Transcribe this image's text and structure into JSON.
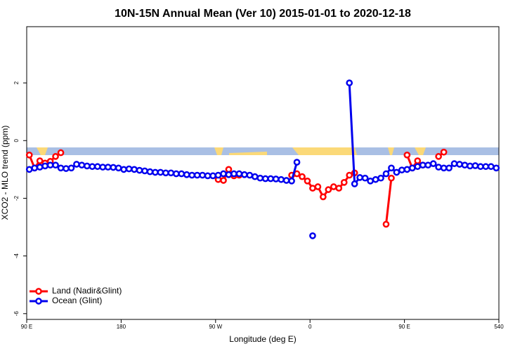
{
  "chart_data": {
    "type": "line",
    "title": "10N-15N Annual Mean (Ver 10)   2015-01-01 to 2020-12-18",
    "x_label": "Longitude (deg E)",
    "y_label": "XCO2 - MLO trend (ppm)",
    "xlim": [
      90,
      540
    ],
    "ylim": [
      -6.2,
      3.95
    ],
    "xticks": [
      {
        "value": 90,
        "label": "90 E"
      },
      180,
      {
        "value": 270,
        "label": "90 W"
      },
      {
        "value": 360,
        "label": "0"
      },
      {
        "value": 450,
        "label": "90 E"
      },
      540
    ],
    "yticks": [
      -6,
      -4,
      -2,
      0,
      2
    ],
    "legend": "bottom-left",
    "x": [
      92.5,
      97.5,
      102.5,
      107.5,
      112.5,
      117.5,
      122.5,
      127.5,
      132.5,
      137.5,
      142.5,
      147.5,
      152.5,
      157.5,
      162.5,
      167.5,
      172.5,
      177.5,
      182.5,
      187.5,
      192.5,
      197.5,
      202.5,
      207.5,
      212.5,
      217.5,
      222.5,
      227.5,
      232.5,
      237.5,
      242.5,
      247.5,
      252.5,
      257.5,
      262.5,
      267.5,
      272.5,
      277.5,
      282.5,
      287.5,
      292.5,
      297.5,
      302.5,
      307.5,
      312.5,
      317.5,
      322.5,
      327.5,
      332.5,
      337.5,
      342.5,
      347.5,
      352.5,
      357.5,
      362.5,
      367.5,
      372.5,
      377.5,
      382.5,
      387.5,
      392.5,
      397.5,
      402.5,
      407.5,
      412.5,
      417.5,
      422.5,
      427.5,
      432.5,
      437.5,
      442.5,
      447.5,
      452.5,
      457.5,
      462.5,
      467.5,
      472.5,
      477.5,
      482.5,
      487.5,
      492.5,
      497.5,
      502.5,
      507.5,
      512.5,
      517.5,
      522.5,
      527.5,
      532.5,
      537.5
    ],
    "series": [
      {
        "name": "Land (Nadir&Glint)",
        "color": "#ff0000",
        "values": [
          -0.5,
          -0.95,
          -0.7,
          -0.78,
          -0.72,
          -0.55,
          -0.42,
          null,
          null,
          null,
          null,
          null,
          null,
          null,
          null,
          null,
          null,
          null,
          null,
          null,
          null,
          null,
          null,
          null,
          null,
          null,
          null,
          null,
          null,
          null,
          null,
          null,
          null,
          null,
          null,
          null,
          -1.35,
          -1.38,
          -1.0,
          -1.22,
          -1.2,
          null,
          null,
          null,
          null,
          null,
          null,
          null,
          null,
          null,
          -1.2,
          -1.15,
          -1.25,
          -1.4,
          -1.65,
          -1.6,
          -1.95,
          -1.7,
          -1.6,
          -1.65,
          -1.45,
          -1.2,
          -1.12,
          null,
          null,
          null,
          null,
          null,
          -2.9,
          -1.3,
          null,
          null,
          -0.5,
          -0.95,
          -0.7,
          -0.85,
          null,
          null,
          -0.55,
          -0.4,
          null,
          null,
          null,
          null,
          null,
          null,
          null,
          null,
          null,
          null
        ]
      },
      {
        "name": "Ocean (Glint)",
        "color": "#0000ee",
        "values": [
          -1.0,
          -0.95,
          -0.92,
          -0.88,
          -0.85,
          -0.85,
          -0.95,
          -0.97,
          -0.95,
          -0.82,
          -0.85,
          -0.88,
          -0.9,
          -0.9,
          -0.92,
          -0.92,
          -0.93,
          -0.95,
          -1.0,
          -0.98,
          -1.0,
          -1.03,
          -1.05,
          -1.08,
          -1.1,
          -1.1,
          -1.12,
          -1.12,
          -1.15,
          -1.15,
          -1.18,
          -1.2,
          -1.2,
          -1.2,
          -1.22,
          -1.22,
          -1.2,
          -1.15,
          -1.18,
          -1.15,
          -1.15,
          -1.18,
          -1.2,
          -1.25,
          -1.3,
          -1.32,
          -1.32,
          -1.33,
          -1.35,
          -1.38,
          -1.4,
          -0.75,
          null,
          null,
          -3.3,
          null,
          null,
          null,
          null,
          null,
          null,
          2.0,
          -1.5,
          -1.28,
          -1.3,
          -1.4,
          -1.35,
          -1.3,
          -1.15,
          -0.95,
          -1.1,
          -1.02,
          -1.0,
          -0.95,
          -0.9,
          -0.85,
          -0.85,
          -0.8,
          -0.92,
          -0.95,
          -0.95,
          -0.8,
          -0.82,
          -0.85,
          -0.88,
          -0.87,
          -0.9,
          -0.9,
          -0.9,
          -0.95
        ]
      }
    ]
  }
}
